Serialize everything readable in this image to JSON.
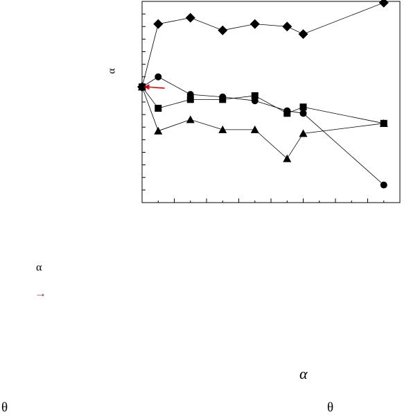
{
  "page": {
    "ylabel_glyph": "α",
    "alpha_small": "α",
    "arrow_small": "→",
    "alpha_italic": "α",
    "theta_left": "θ",
    "theta_right": "θ",
    "arrow_color": "#e8000b"
  },
  "chart_data": {
    "type": "line",
    "title": "",
    "xlabel": "",
    "ylabel": "α",
    "xlim": [
      0,
      8
    ],
    "ylim": [
      0,
      8
    ],
    "grid": false,
    "legend": "none",
    "major_x_ticks": [
      0,
      1,
      2,
      3,
      4,
      5,
      6,
      7,
      8
    ],
    "minor_x_ticks": [
      0.5,
      1.5,
      2.5,
      3.5,
      4.5,
      5.5,
      6.5,
      7.5
    ],
    "y_ticks": [
      0.5,
      1,
      1.5,
      2,
      2.5,
      3,
      3.5,
      4,
      4.5,
      5,
      5.5,
      6,
      6.5,
      7,
      7.5
    ],
    "annotation": {
      "type": "arrow",
      "color": "#e8000b",
      "from": [
        0.7,
        4.55
      ],
      "to": [
        0.05,
        4.6
      ]
    },
    "series": [
      {
        "marker": "diamond",
        "x": [
          0,
          0.5,
          1.5,
          2.5,
          3.5,
          4.5,
          5,
          7.5
        ],
        "y": [
          4.6,
          7.1,
          7.35,
          6.85,
          7.1,
          7.0,
          6.7,
          7.95
        ]
      },
      {
        "marker": "circle",
        "x": [
          0,
          0.5,
          1.5,
          2.5,
          3.5,
          4.5,
          5,
          7.5
        ],
        "y": [
          4.6,
          5.0,
          4.3,
          4.2,
          4.05,
          3.65,
          3.55,
          0.7
        ]
      },
      {
        "marker": "square",
        "x": [
          0,
          0.5,
          1.5,
          2.5,
          3.5,
          4.5,
          5,
          7.5
        ],
        "y": [
          4.6,
          3.75,
          4.1,
          4.1,
          4.25,
          3.55,
          3.8,
          3.15
        ]
      },
      {
        "marker": "triangle",
        "x": [
          0,
          0.5,
          1.5,
          2.5,
          3.5,
          4.5,
          5,
          7.5
        ],
        "y": [
          4.6,
          2.85,
          3.3,
          2.9,
          2.9,
          1.75,
          2.75,
          3.15
        ]
      }
    ]
  }
}
